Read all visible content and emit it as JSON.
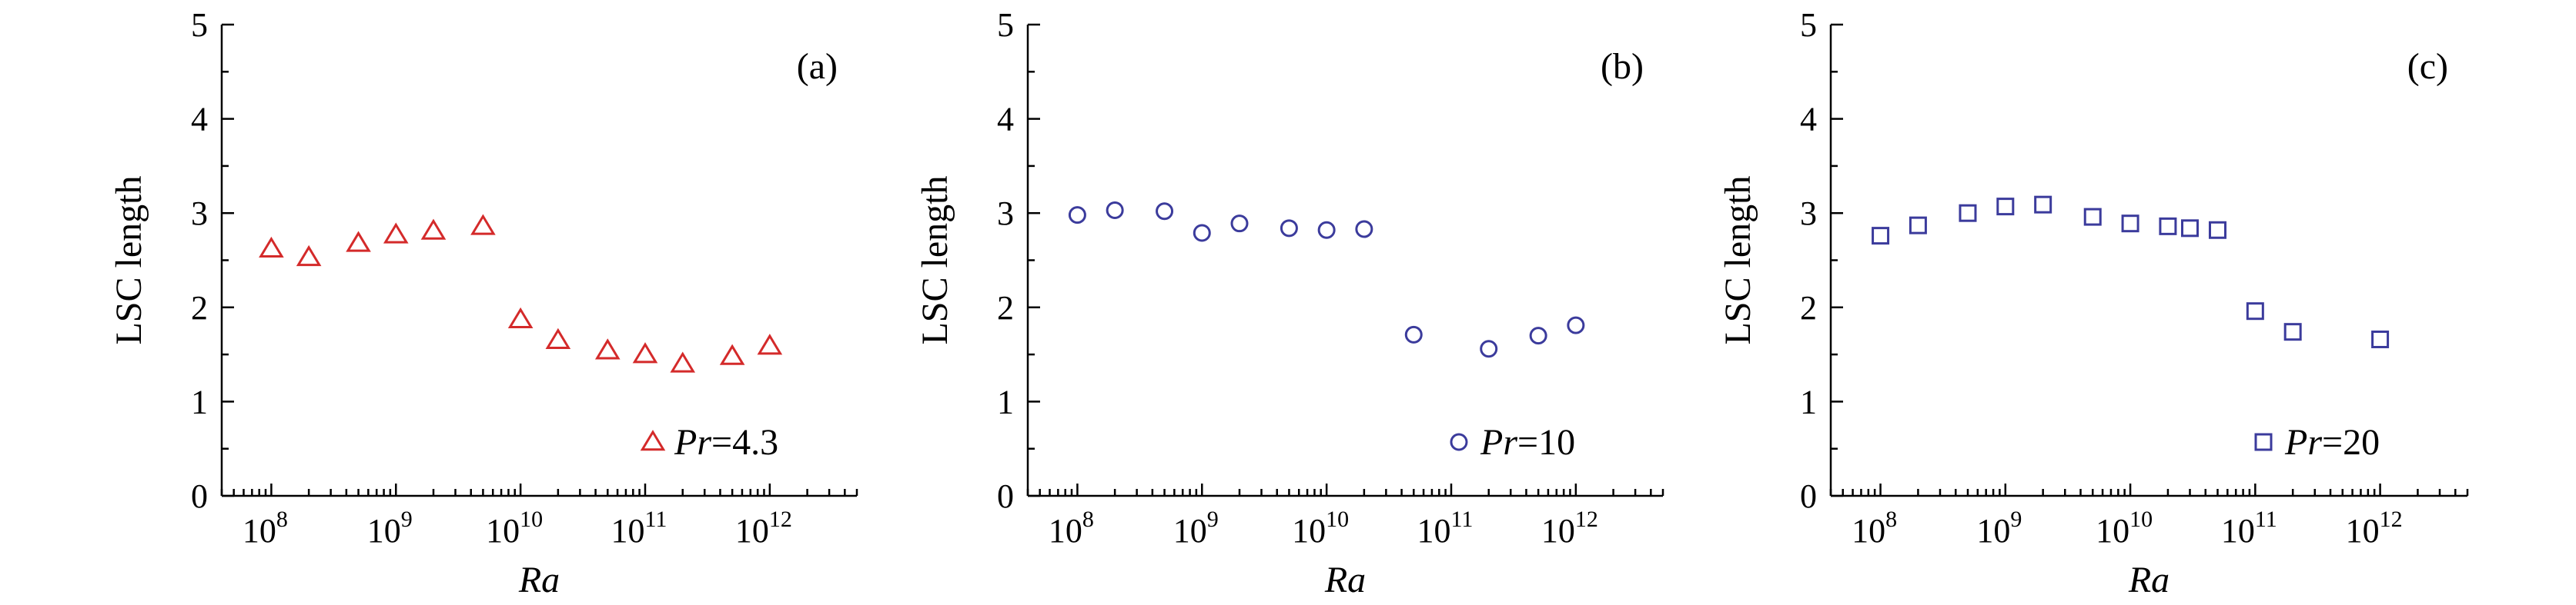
{
  "chart_data": [
    {
      "type": "scatter",
      "panel_label": "(a)",
      "xlabel": "Ra",
      "ylabel": "LSC length",
      "x_scale": "log",
      "xlim": [
        40000000.0,
        5000000000000.0
      ],
      "ylim": [
        0,
        5
      ],
      "x_ticks": [
        {
          "base": "10",
          "exp": "8"
        },
        {
          "base": "10",
          "exp": "9"
        },
        {
          "base": "10",
          "exp": "10"
        },
        {
          "base": "10",
          "exp": "11"
        },
        {
          "base": "10",
          "exp": "12"
        }
      ],
      "y_ticks": [
        "0",
        "1",
        "2",
        "3",
        "4",
        "5"
      ],
      "grid": false,
      "legend": {
        "position": "bottom-right",
        "name_italic": "Pr",
        "value": "=4.3"
      },
      "series": [
        {
          "marker": "triangle",
          "color": "#d42a2a",
          "x": [
            100000000.0,
            200000000.0,
            500000000.0,
            1000000000.0,
            2000000000.0,
            5000000000.0,
            10000000000.0,
            20000000000.0,
            50000000000.0,
            100000000000.0,
            200000000000.0,
            500000000000.0,
            1000000000000.0
          ],
          "y": [
            2.62,
            2.53,
            2.68,
            2.77,
            2.81,
            2.86,
            1.87,
            1.65,
            1.54,
            1.5,
            1.4,
            1.48,
            1.59
          ]
        }
      ]
    },
    {
      "type": "scatter",
      "panel_label": "(b)",
      "xlabel": "Ra",
      "ylabel": "LSC length",
      "x_scale": "log",
      "xlim": [
        40000000.0,
        5000000000000.0
      ],
      "ylim": [
        0,
        5
      ],
      "x_ticks": [
        {
          "base": "10",
          "exp": "8"
        },
        {
          "base": "10",
          "exp": "9"
        },
        {
          "base": "10",
          "exp": "10"
        },
        {
          "base": "10",
          "exp": "11"
        },
        {
          "base": "10",
          "exp": "12"
        }
      ],
      "y_ticks": [
        "0",
        "1",
        "2",
        "3",
        "4",
        "5"
      ],
      "grid": false,
      "legend": {
        "position": "bottom-right",
        "name_italic": "Pr",
        "value": "=10"
      },
      "series": [
        {
          "marker": "circle",
          "color": "#3b3b9c",
          "x": [
            100000000.0,
            200000000.0,
            500000000.0,
            1000000000.0,
            2000000000.0,
            5000000000.0,
            10000000000.0,
            20000000000.0,
            50000000000.0,
            200000000000.0,
            500000000000.0,
            1000000000000.0
          ],
          "y": [
            2.98,
            3.03,
            3.02,
            2.79,
            2.89,
            2.84,
            2.82,
            2.83,
            1.71,
            1.56,
            1.7,
            1.81
          ]
        }
      ]
    },
    {
      "type": "scatter",
      "panel_label": "(c)",
      "xlabel": "Ra",
      "ylabel": "LSC length",
      "x_scale": "log",
      "xlim": [
        40000000.0,
        5000000000000.0
      ],
      "ylim": [
        0,
        5
      ],
      "x_ticks": [
        {
          "base": "10",
          "exp": "8"
        },
        {
          "base": "10",
          "exp": "9"
        },
        {
          "base": "10",
          "exp": "10"
        },
        {
          "base": "10",
          "exp": "11"
        },
        {
          "base": "10",
          "exp": "12"
        }
      ],
      "y_ticks": [
        "0",
        "1",
        "2",
        "3",
        "4",
        "5"
      ],
      "grid": false,
      "legend": {
        "position": "bottom-right",
        "name_italic": "Pr",
        "value": "=20"
      },
      "series": [
        {
          "marker": "square",
          "color": "#3b3b9c",
          "x": [
            100000000.0,
            200000000.0,
            500000000.0,
            1000000000.0,
            2000000000.0,
            5000000000.0,
            10000000000.0,
            20000000000.0,
            30000000000.0,
            50000000000.0,
            100000000000.0,
            200000000000.0,
            1000000000000.0
          ],
          "y": [
            2.76,
            2.87,
            3.0,
            3.07,
            3.09,
            2.96,
            2.89,
            2.86,
            2.84,
            2.82,
            1.96,
            1.74,
            1.66
          ]
        }
      ]
    }
  ]
}
